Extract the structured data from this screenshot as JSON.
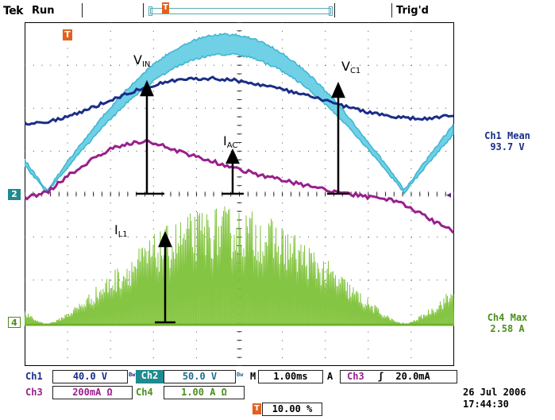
{
  "header": {
    "brand": "Tek",
    "acq_state": "Run",
    "trigger_status": "Trig'd",
    "trigger_marker": "T"
  },
  "ground_markers": {
    "ch2": "2",
    "ch4": "4",
    "trig_level_arrow": "◂"
  },
  "waveform_labels": {
    "vin": {
      "main": "V",
      "sub": "IN"
    },
    "vc1": {
      "main": "V",
      "sub": "C1"
    },
    "iac": {
      "main": "I",
      "sub": "AC"
    },
    "il1": {
      "main": "I",
      "sub": "L1"
    }
  },
  "measurements": {
    "ch1_mean_label": "Ch1 Mean",
    "ch1_mean_value": "93.7 V",
    "ch4_max_label": "Ch4 Max",
    "ch4_max_value": "2.58 A"
  },
  "bottom": {
    "ch1_label": "Ch1",
    "ch1_scale": "40.0 V",
    "ch1_bw": "Bw",
    "ch2_label": "Ch2",
    "ch2_scale": "50.0 V",
    "ch2_bw": "Bw",
    "timebase_prefix": "M",
    "timebase": "1.00ms",
    "trig_mode": "A",
    "trig_source": "Ch3",
    "trig_slope": "ʃ",
    "trig_level": "20.0mA",
    "ch3_label": "Ch3",
    "ch3_scale": "200mA Ω",
    "ch4_label": "Ch4",
    "ch4_scale": "1.00 A Ω",
    "trig_position": "10.00 %",
    "date": "26 Jul  2006",
    "time": "17:44:30"
  },
  "colors": {
    "ch1": "#1a2d87",
    "ch2": "#5cc6df",
    "ch3": "#9a1f8e",
    "ch4": "#7fc23a",
    "trigger": "#e2611f",
    "grid": "#000000"
  }
}
